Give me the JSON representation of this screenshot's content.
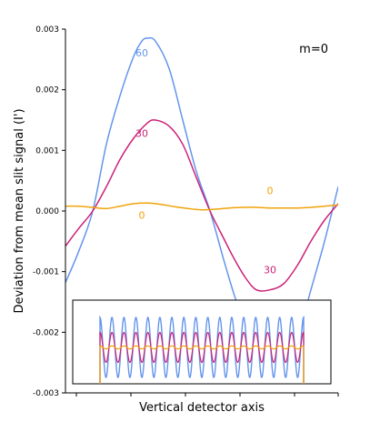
{
  "chart_data": {
    "type": "line",
    "title": "",
    "xlabel": "Vertical detector axis",
    "ylabel": "Deviation from mean slit signal (I')",
    "ylim": [
      -0.003,
      0.003
    ],
    "xlim": [
      0,
      1
    ],
    "yticks": [
      {
        "value": 0.003,
        "label": "0.003"
      },
      {
        "value": 0.002,
        "label": "0.002"
      },
      {
        "value": 0.001,
        "label": "0.001"
      },
      {
        "value": 0.0,
        "label": "0.000"
      },
      {
        "value": -0.001,
        "label": "-0.001"
      },
      {
        "value": -0.002,
        "label": "-0.002"
      },
      {
        "value": -0.003,
        "label": "-0.003"
      }
    ],
    "xticks_unlabeled": [
      0.04,
      0.24,
      0.44,
      0.64,
      0.84,
      1.0
    ],
    "annotation": "m=0",
    "series": [
      {
        "name": "60",
        "color": "#6495ed",
        "x": [
          0.0,
          0.05,
          0.1,
          0.15,
          0.2,
          0.25,
          0.28,
          0.3,
          0.33,
          0.38,
          0.43,
          0.48,
          0.53,
          0.58,
          0.62,
          0.66,
          0.7,
          0.75,
          0.8,
          0.85,
          0.9,
          0.95,
          1.0
        ],
        "y": [
          -0.00118,
          -0.00065,
          0.0,
          0.0011,
          0.0019,
          0.00255,
          0.0028,
          0.00285,
          0.0028,
          0.00235,
          0.0015,
          0.00065,
          0.0,
          -0.0008,
          -0.0014,
          -0.0019,
          -0.0023,
          -0.0026,
          -0.0025,
          -0.0021,
          -0.0013,
          -0.0005,
          0.0004
        ]
      },
      {
        "name": "30",
        "color": "#cc2277",
        "x": [
          0.0,
          0.05,
          0.1,
          0.15,
          0.2,
          0.25,
          0.3,
          0.33,
          0.38,
          0.43,
          0.48,
          0.53,
          0.58,
          0.62,
          0.66,
          0.7,
          0.75,
          0.8,
          0.85,
          0.9,
          0.95,
          1.0
        ],
        "y": [
          -0.00058,
          -0.00028,
          0.0,
          0.0004,
          0.00085,
          0.0012,
          0.00145,
          0.0015,
          0.0014,
          0.0011,
          0.00055,
          0.0,
          -0.00045,
          -0.0008,
          -0.0011,
          -0.0013,
          -0.0013,
          -0.0012,
          -0.0009,
          -0.0005,
          -0.00015,
          0.00012
        ]
      },
      {
        "name": "0",
        "color": "#f0a30a",
        "x": [
          0.0,
          0.05,
          0.1,
          0.15,
          0.2,
          0.25,
          0.3,
          0.35,
          0.4,
          0.45,
          0.5,
          0.55,
          0.6,
          0.65,
          0.7,
          0.75,
          0.8,
          0.85,
          0.9,
          0.95,
          1.0
        ],
        "y": [
          8e-05,
          8e-05,
          6e-05,
          4e-05,
          8e-05,
          0.00012,
          0.00013,
          0.00011,
          7e-05,
          4e-05,
          2e-05,
          3e-05,
          5e-05,
          6e-05,
          6e-05,
          5e-05,
          5e-05,
          5e-05,
          6e-05,
          8e-05,
          0.0001
        ]
      }
    ],
    "labels": [
      {
        "text": "60",
        "x": 0.28,
        "y": 0.00255,
        "color": "#6495ed"
      },
      {
        "text": "30",
        "x": 0.28,
        "y": 0.00122,
        "color": "#cc2277"
      },
      {
        "text": "0",
        "x": 0.28,
        "y": -0.00013,
        "color": "#f0a30a"
      },
      {
        "text": "0",
        "x": 0.75,
        "y": 0.00028,
        "color": "#f0a30a"
      },
      {
        "text": "30",
        "x": 0.75,
        "y": -0.00103,
        "color": "#cc2277"
      }
    ],
    "inset": {
      "type": "line",
      "cycles": 17,
      "series": [
        {
          "name": "60",
          "color": "#6495ed",
          "amplitude": 1.0
        },
        {
          "name": "30",
          "color": "#cc2277",
          "amplitude": 0.5
        },
        {
          "name": "0",
          "color": "#f0a30a",
          "amplitude": 0.05
        }
      ]
    }
  }
}
